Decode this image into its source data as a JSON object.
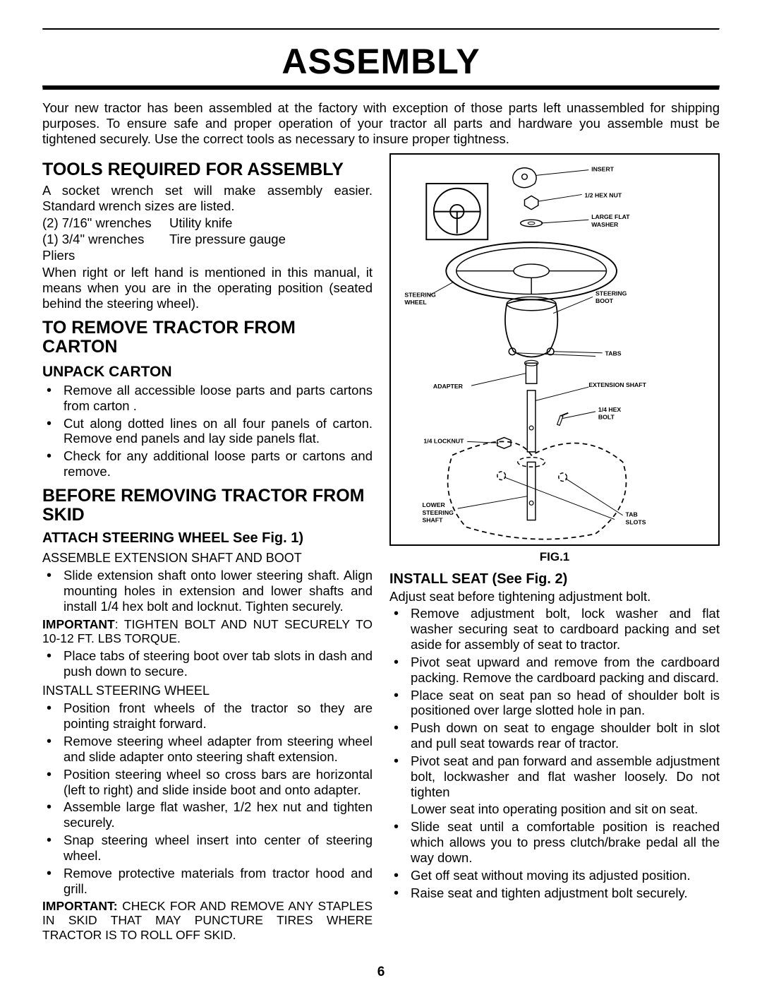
{
  "doc_title": "ASSEMBLY",
  "page_number": "6",
  "intro": "Your new tractor has been assembled at the factory with exception of those parts left unassembled for shipping purposes. To ensure safe and proper operation of your tractor all parts and hardware you assemble must be tightened securely. Use the correct tools as necessary to insure proper tightness.",
  "left": {
    "tools_h": "TOOLS REQUIRED FOR ASSEMBLY",
    "tools_p": "A socket wrench set will make assembly easier. Standard wrench sizes are listed.",
    "tools": [
      {
        "a": "(2) 7/16\" wrenches",
        "b": "Utility knife"
      },
      {
        "a": "(1) 3/4\" wrenches",
        "b": "Tire pressure gauge"
      },
      {
        "a": "Pliers",
        "b": ""
      }
    ],
    "hand_note": "When right or left hand is mentioned in this manual, it means when you are in the operating position (seated behind the steering wheel).",
    "remove_h": "TO REMOVE TRACTOR FROM CARTON",
    "unpack_h": "UNPACK CARTON",
    "unpack_items": [
      "Remove all accessible loose parts and parts cartons from carton .",
      "Cut along dotted lines on all four panels of carton. Remove end panels and lay side panels flat.",
      "Check for any additional loose parts or cartons and remove."
    ],
    "before_h": "BEFORE REMOVING TRACTOR FROM SKID",
    "attach_h": "ATTACH STEERING WHEEL See Fig. 1)",
    "ext_p": "ASSEMBLE EXTENSION SHAFT AND BOOT",
    "ext_items": [
      "Slide extension shaft onto lower steering shaft. Align mounting holes in extension and lower shafts and install 1/4 hex bolt and locknut. Tighten securely."
    ],
    "imp1_b": "IMPORTANT",
    "imp1": ": TIGHTEN BOLT AND NUT SECURELY TO 10-12 FT. LBS TORQUE.",
    "tabs_items": [
      "Place tabs of steering boot over tab slots in dash and push down to secure."
    ],
    "install_sw_p": "INSTALL STEERING WHEEL",
    "install_sw_items": [
      "Position front wheels of the tractor so they are pointing straight forward.",
      "Remove steering wheel adapter from steering wheel and slide adapter onto steering shaft extension.",
      "Position steering wheel so cross bars are horizontal (left to right) and slide inside boot and onto adapter.",
      "Assemble large flat washer, 1/2 hex nut and tighten securely.",
      "Snap steering wheel insert into center of steering wheel.",
      "Remove protective materials from tractor hood and grill."
    ],
    "imp2_b": "IMPORTANT:",
    "imp2": " CHECK FOR AND REMOVE ANY STAPLES IN SKID THAT MAY PUNCTURE TIRES WHERE TRACTOR IS TO ROLL OFF SKID."
  },
  "right": {
    "fig_caption": "FIG.1",
    "seat_h": "INSTALL SEAT (See Fig. 2)",
    "seat_p": "Adjust seat before tightening adjustment bolt.",
    "seat_items": [
      "Remove adjustment bolt, lock washer and flat washer securing seat to cardboard packing and set aside for assembly of seat to tractor.",
      "Pivot seat upward and remove from the cardboard packing. Remove the cardboard packing and discard.",
      "Place seat on seat pan so head of shoulder bolt is positioned over large slotted hole in pan.",
      "Push down on seat to engage shoulder bolt in slot and pull seat towards rear of tractor.",
      "Pivot seat and pan forward and assemble adjustment bolt, lockwasher and flat washer loosely. Do not tighten",
      "Lower seat into operating position and sit on seat.",
      "Slide seat until a comfortable position is reached which allows you to press clutch/brake pedal all the way down.",
      "Get off seat without moving its adjusted position.",
      "Raise seat and tighten adjustment bolt securely."
    ]
  },
  "fig": {
    "labels": {
      "insert": "INSERT",
      "hexnut": "1/2 HEX NUT",
      "washer": "LARGE FLAT WASHER",
      "steering_wheel": "STEERING WHEEL",
      "boot": "STEERING BOOT",
      "tabs": "TABS",
      "adapter": "ADAPTER",
      "ext_shaft": "EXTENSION SHAFT",
      "hexbolt": "1/4 HEX BOLT",
      "locknut": "1/4 LOCKNUT",
      "lower_shaft": "LOWER STEERING SHAFT",
      "tab_slots": "TAB SLOTS"
    }
  }
}
